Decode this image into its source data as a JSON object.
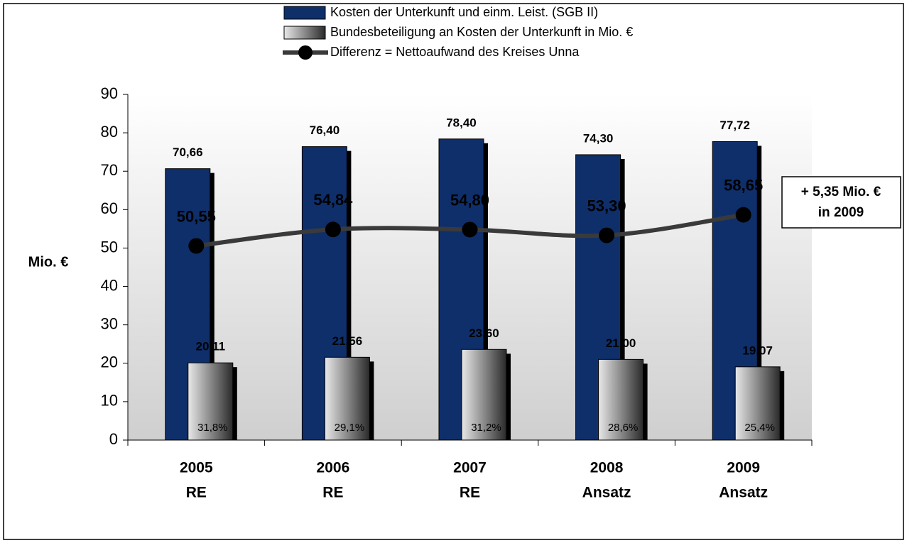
{
  "chart_data": {
    "type": "bar-line",
    "categories": [
      [
        "2005",
        "RE"
      ],
      [
        "2006",
        "RE"
      ],
      [
        "2007",
        "RE"
      ],
      [
        "2008",
        "Ansatz"
      ],
      [
        "2009",
        "Ansatz"
      ]
    ],
    "series": [
      {
        "name": "Kosten der Unterkunft und einm. Leist. (SGB II)",
        "type": "bar",
        "color": "#0f2f6b",
        "values": [
          70.66,
          76.4,
          78.4,
          74.3,
          77.72
        ],
        "value_labels": [
          "70,66",
          "76,40",
          "78,40",
          "74,30",
          "77,72"
        ]
      },
      {
        "name": "Bundesbeteiligung an Kosten der Unterkunft in Mio. €",
        "type": "bar",
        "color": "#8a8a8a",
        "values": [
          20.11,
          21.56,
          23.6,
          21.0,
          19.07
        ],
        "value_labels": [
          "20,11",
          "21,56",
          "23,60",
          "21,00",
          "19,07"
        ],
        "share": {
          "values": [
            31.8,
            29.1,
            31.2,
            28.6,
            25.4
          ],
          "value_labels": [
            "31,8%",
            "29,1%",
            "31,2%",
            "28,6%",
            "25,4%"
          ]
        }
      },
      {
        "name": "Differenz = Nettoaufwand des Kreises Unna",
        "type": "line",
        "color": "#3a3a3a",
        "values": [
          50.55,
          54.84,
          54.8,
          53.3,
          58.65
        ],
        "value_labels": [
          "50,55",
          "54,84",
          "54,80",
          "53,30",
          "58,65"
        ]
      }
    ],
    "y_label": "Mio. €",
    "ylim": [
      0,
      90
    ],
    "yticks": [
      0,
      10,
      20,
      30,
      40,
      50,
      60,
      70,
      80,
      90
    ],
    "annotation": {
      "lines": [
        "+ 5,35 Mio. €",
        "in 2009"
      ]
    },
    "legend": "top"
  }
}
